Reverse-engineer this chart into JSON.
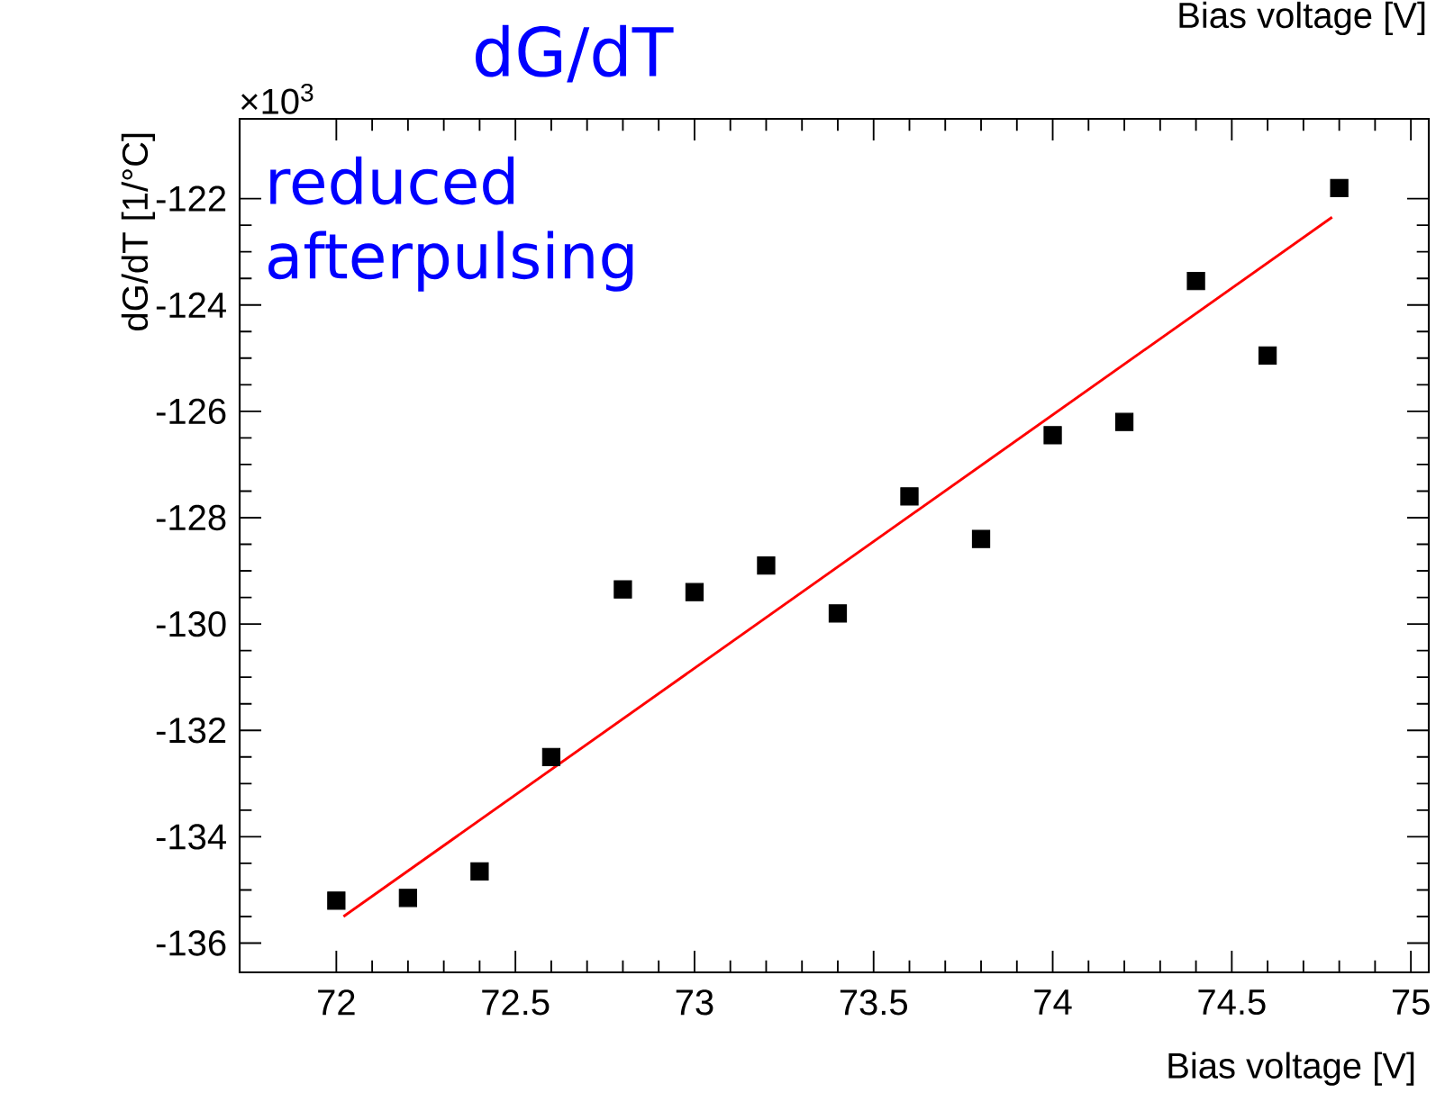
{
  "chart_data": {
    "type": "scatter",
    "title": "dG/dT",
    "xlabel": "Bias voltage [V]",
    "ylabel": "dG/dT [1/°C]",
    "annotations": [
      "×10$^{3}$",
      "reduced afterpulsing",
      "Bias voltage [V]"
    ],
    "x": [
      72.0,
      72.2,
      72.4,
      72.6,
      72.8,
      73.0,
      73.2,
      73.4,
      73.6,
      73.8,
      74.0,
      74.2,
      74.4,
      74.6,
      74.8
    ],
    "series": [
      {
        "type": "scatter",
        "marker": "square",
        "color": "#000000",
        "values": [
          -135.2,
          -135.15,
          -134.65,
          -132.5,
          -129.35,
          -129.4,
          -128.9,
          -129.8,
          -127.6,
          -128.4,
          -126.45,
          -126.2,
          -123.55,
          -124.95,
          -121.8
        ]
      },
      {
        "type": "line",
        "marker": "none",
        "color": "#ff0000",
        "x": [
          72.02,
          74.78
        ],
        "values": [
          -135.5,
          -122.35
        ]
      }
    ],
    "xlim": [
      71.73,
      75.05
    ],
    "ylim": [
      -136.55,
      -120.5
    ],
    "xticks": [
      72,
      72.5,
      73,
      73.5,
      74,
      74.5,
      75
    ],
    "yticks": [
      -136,
      -134,
      -132,
      -130,
      -128,
      -126,
      -124,
      -122
    ],
    "grid": false
  }
}
